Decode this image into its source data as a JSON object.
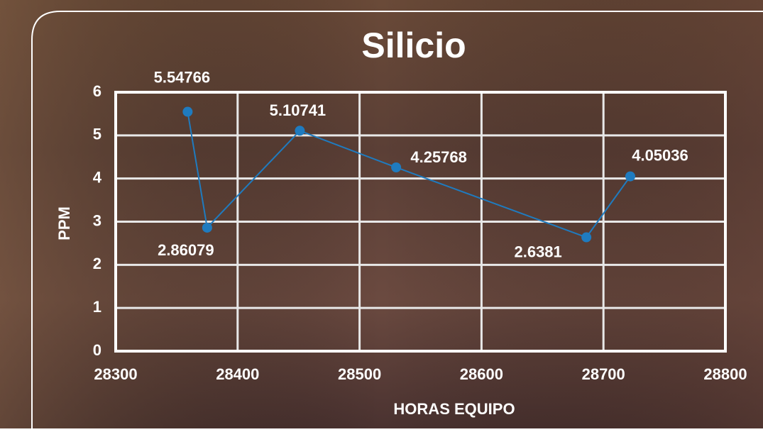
{
  "chart_data": {
    "type": "line",
    "title": "Silicio",
    "x_label": "HORAS EQUIPO",
    "y_label": "PPM",
    "x": [
      28359,
      28375,
      28451,
      28530,
      28686,
      28722
    ],
    "series": [
      {
        "name": "Silicio",
        "color": "#1f7bbf",
        "values": [
          5.54766,
          2.86079,
          5.10741,
          4.25768,
          2.6381,
          4.05036
        ]
      }
    ],
    "xlim": [
      28300,
      28800
    ],
    "xticks": [
      28300,
      28400,
      28500,
      28600,
      28700,
      28800
    ],
    "ylim": [
      0,
      6
    ],
    "yticks": [
      0,
      1,
      2,
      3,
      4,
      5,
      6
    ],
    "grid": true
  }
}
